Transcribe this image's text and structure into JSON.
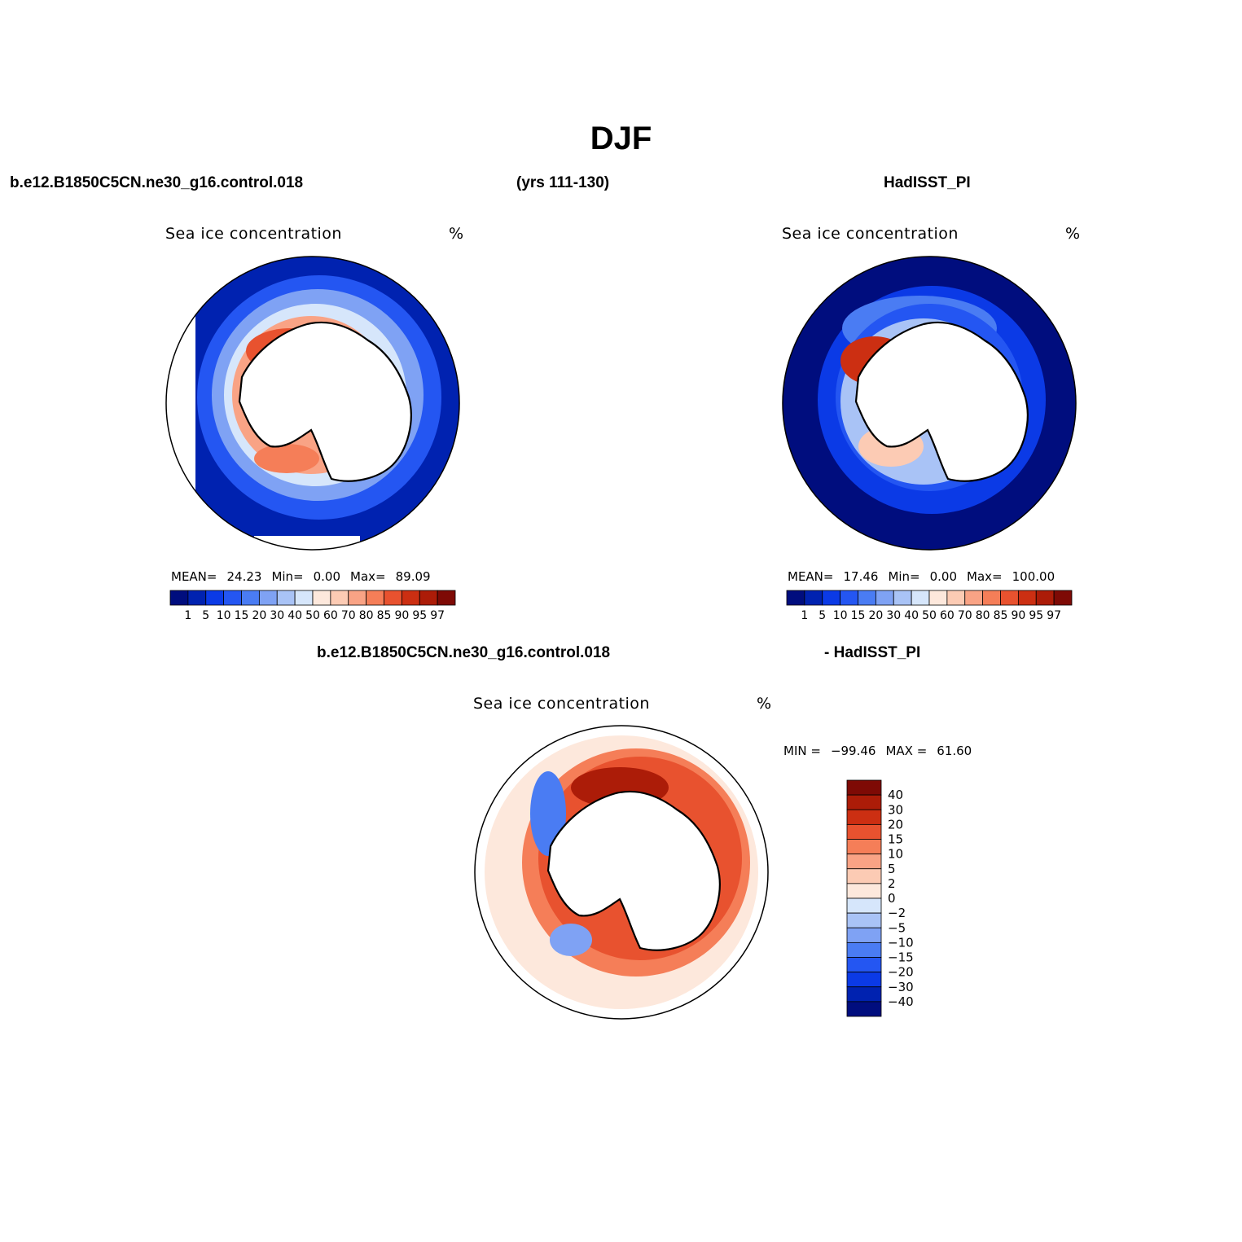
{
  "page": {
    "title": "DJF",
    "case_name": "b.e12.B1850C5CN.ne30_g16.control.018",
    "years": "(yrs 111-130)",
    "obs_name": "HadISST_PI",
    "diff_left": "b.e12.B1850C5CN.ne30_g16.control.018",
    "diff_right": "- HadISST_PI"
  },
  "chart_data": [
    {
      "type": "heatmap",
      "id": "model",
      "title": "Sea ice concentration",
      "units": "%",
      "projection": "south polar stereographic",
      "stats": {
        "mean_label": "MEAN=",
        "mean": "24.23",
        "min_label": "Min=",
        "min": "0.00",
        "max_label": "Max=",
        "max": "89.09"
      },
      "levels": [
        "1",
        "5",
        "10",
        "15",
        "20",
        "30",
        "40",
        "50",
        "60",
        "70",
        "80",
        "85",
        "90",
        "95",
        "97"
      ],
      "colors": [
        "#000d7e",
        "#0022b0",
        "#0b3ae6",
        "#2456f2",
        "#4a7cf3",
        "#7fa2f4",
        "#a9c3f6",
        "#d6e6fb",
        "#fde8dc",
        "#fccbb4",
        "#f9a385",
        "#f57e58",
        "#e8522f",
        "#cc2f12",
        "#ac1c08",
        "#7e0a05"
      ],
      "ring_values": [
        2,
        12,
        25,
        55,
        78
      ],
      "ring_colors_hint": "blue outer ocean, red near coast"
    },
    {
      "type": "heatmap",
      "id": "obs",
      "title": "Sea ice concentration",
      "units": "%",
      "projection": "south polar stereographic",
      "stats": {
        "mean_label": "MEAN=",
        "mean": "17.46",
        "min_label": "Min=",
        "min": "0.00",
        "max_label": "Max=",
        "max": "100.00"
      },
      "levels": [
        "1",
        "5",
        "10",
        "15",
        "20",
        "30",
        "40",
        "50",
        "60",
        "70",
        "80",
        "85",
        "90",
        "95",
        "97"
      ],
      "colors": [
        "#000d7e",
        "#0022b0",
        "#0b3ae6",
        "#2456f2",
        "#4a7cf3",
        "#7fa2f4",
        "#a9c3f6",
        "#d6e6fb",
        "#fde8dc",
        "#fccbb4",
        "#f9a385",
        "#f57e58",
        "#e8522f",
        "#cc2f12",
        "#ac1c08",
        "#7e0a05"
      ],
      "ring_values": [
        0.5,
        3,
        8,
        30,
        70
      ]
    },
    {
      "type": "heatmap",
      "id": "diff",
      "title": "Sea ice concentration",
      "units": "%",
      "projection": "south polar stereographic",
      "stats": {
        "min_label": "MIN =",
        "min": "−99.46",
        "max_label": "MAX =",
        "max": "61.60"
      },
      "levels": [
        "40",
        "30",
        "20",
        "15",
        "10",
        "5",
        "2",
        "0",
        "−2",
        "−5",
        "−10",
        "−15",
        "−20",
        "−30",
        "−40"
      ],
      "colors": [
        "#7e0a05",
        "#ac1c08",
        "#cc2f12",
        "#e8522f",
        "#f57e58",
        "#f9a385",
        "#fccbb4",
        "#fde8dc",
        "#d6e6fb",
        "#a9c3f6",
        "#7fa2f4",
        "#4a7cf3",
        "#2456f2",
        "#0b3ae6",
        "#0022b0",
        "#000d7e"
      ],
      "ring_values": [
        1,
        6,
        18,
        35,
        50
      ]
    }
  ]
}
